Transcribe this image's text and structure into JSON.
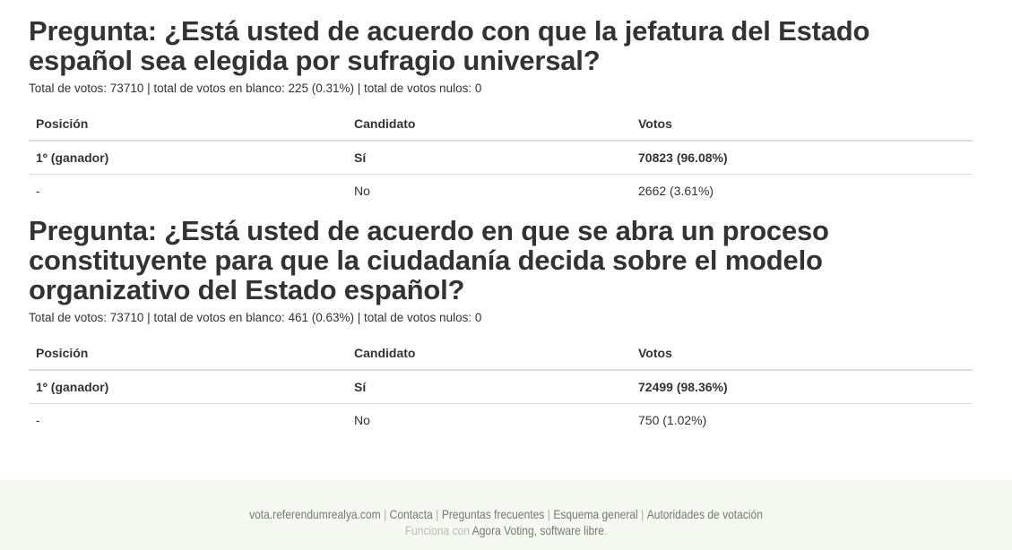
{
  "questions": [
    {
      "title": "Pregunta: ¿Está usted de acuerdo con que la jefatura del Estado español sea elegida por sufragio universal?",
      "stats": "Total de votos: 73710 | total de votos en blanco: 225 (0.31%) | total de votos nulos: 0",
      "headers": [
        "Posición",
        "Candidato",
        "Votos"
      ],
      "rows": [
        {
          "position": "1º (ganador)",
          "candidate": "Sí",
          "votes": "70823 (96.08%)"
        },
        {
          "position": "-",
          "candidate": "No",
          "votes": "2662 (3.61%)"
        }
      ]
    },
    {
      "title": "Pregunta: ¿Está usted de acuerdo en que se abra un proceso constituyente para que la ciudadanía decida sobre el modelo organizativo del Estado español?",
      "stats": "Total de votos: 73710 | total de votos en blanco: 461 (0.63%) | total de votos nulos: 0",
      "headers": [
        "Posición",
        "Candidato",
        "Votos"
      ],
      "rows": [
        {
          "position": "1º (ganador)",
          "candidate": "Sí",
          "votes": "72499 (98.36%)"
        },
        {
          "position": "-",
          "candidate": "No",
          "votes": "750 (1.02%)"
        }
      ]
    }
  ],
  "footer": {
    "links": [
      "vota.referendumrealya.com",
      "Contacta",
      "Preguntas frecuentes",
      "Esquema general",
      "Autoridades de votación"
    ],
    "separator": "|",
    "powered_prefix": "Funciona con",
    "powered_link": "Agora Voting, software libre",
    "powered_suffix": "."
  },
  "colors": {
    "text": "#333333",
    "footer_bg": "#f5f9f2",
    "footer_link": "#777777",
    "footer_muted": "#bbbbbb",
    "table_border": "#dddddd"
  }
}
